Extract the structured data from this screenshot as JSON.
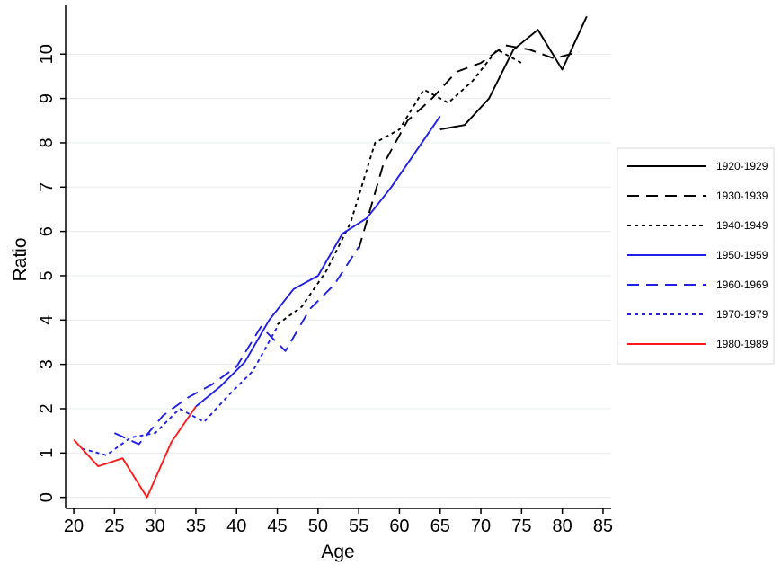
{
  "chart_data": {
    "type": "line",
    "title": "",
    "xlabel": "Age",
    "ylabel": "Ratio",
    "xlim": [
      19,
      86
    ],
    "ylim": [
      -0.25,
      11.1
    ],
    "xticks": [
      20,
      25,
      30,
      35,
      40,
      45,
      50,
      55,
      60,
      65,
      70,
      75,
      80,
      85
    ],
    "yticks": [
      0,
      1,
      2,
      3,
      4,
      5,
      6,
      7,
      8,
      9,
      10
    ],
    "grid": true,
    "legend_position": "right",
    "series": [
      {
        "name": "1920-1929",
        "color": "#000000",
        "dash": "solid",
        "x": [
          65,
          68,
          71,
          74,
          77,
          80,
          83
        ],
        "y": [
          8.3,
          8.4,
          9.0,
          10.1,
          10.55,
          9.65,
          10.85
        ]
      },
      {
        "name": "1930-1939",
        "color": "#000000",
        "dash": "long-dash",
        "x": [
          55,
          58,
          61,
          64,
          67,
          70,
          73,
          76,
          79,
          82
        ],
        "y": [
          5.6,
          7.5,
          8.5,
          9.0,
          9.6,
          9.8,
          10.2,
          10.1,
          9.9,
          10.05
        ]
      },
      {
        "name": "1940-1949",
        "color": "#000000",
        "dash": "short-dash",
        "x": [
          45,
          48,
          51,
          54,
          57,
          60,
          63,
          66,
          69,
          72,
          75
        ],
        "y": [
          3.9,
          4.3,
          5.1,
          6.2,
          8.0,
          8.3,
          9.2,
          8.9,
          9.4,
          10.1,
          9.8
        ]
      },
      {
        "name": "1950-1959",
        "color": "#1f1fe6",
        "dash": "solid",
        "x": [
          35,
          38,
          41,
          44,
          47,
          50,
          53,
          56,
          59,
          62,
          65
        ],
        "y": [
          2.05,
          2.5,
          3.05,
          4.0,
          4.7,
          5.0,
          5.95,
          6.3,
          7.0,
          7.8,
          8.6
        ]
      },
      {
        "name": "1960-1969",
        "color": "#1f1fe6",
        "dash": "long-dash",
        "x": [
          25,
          28,
          31,
          34,
          37,
          40,
          43,
          46,
          49,
          52,
          55
        ],
        "y": [
          1.45,
          1.2,
          1.85,
          2.25,
          2.55,
          2.95,
          3.85,
          3.3,
          4.25,
          4.8,
          5.65
        ]
      },
      {
        "name": "1970-1979",
        "color": "#1f1fe6",
        "dash": "short-dash",
        "x": [
          21,
          24,
          27,
          30,
          33,
          36,
          39,
          42,
          45
        ],
        "y": [
          1.1,
          0.95,
          1.35,
          1.45,
          2.0,
          1.7,
          2.3,
          2.85,
          3.85
        ]
      },
      {
        "name": "1980-1989",
        "color": "#ff1a1a",
        "dash": "solid",
        "x": [
          20,
          23,
          26,
          29,
          32,
          35
        ],
        "y": [
          1.3,
          0.7,
          0.88,
          0.0,
          1.25,
          2.05
        ]
      }
    ]
  }
}
